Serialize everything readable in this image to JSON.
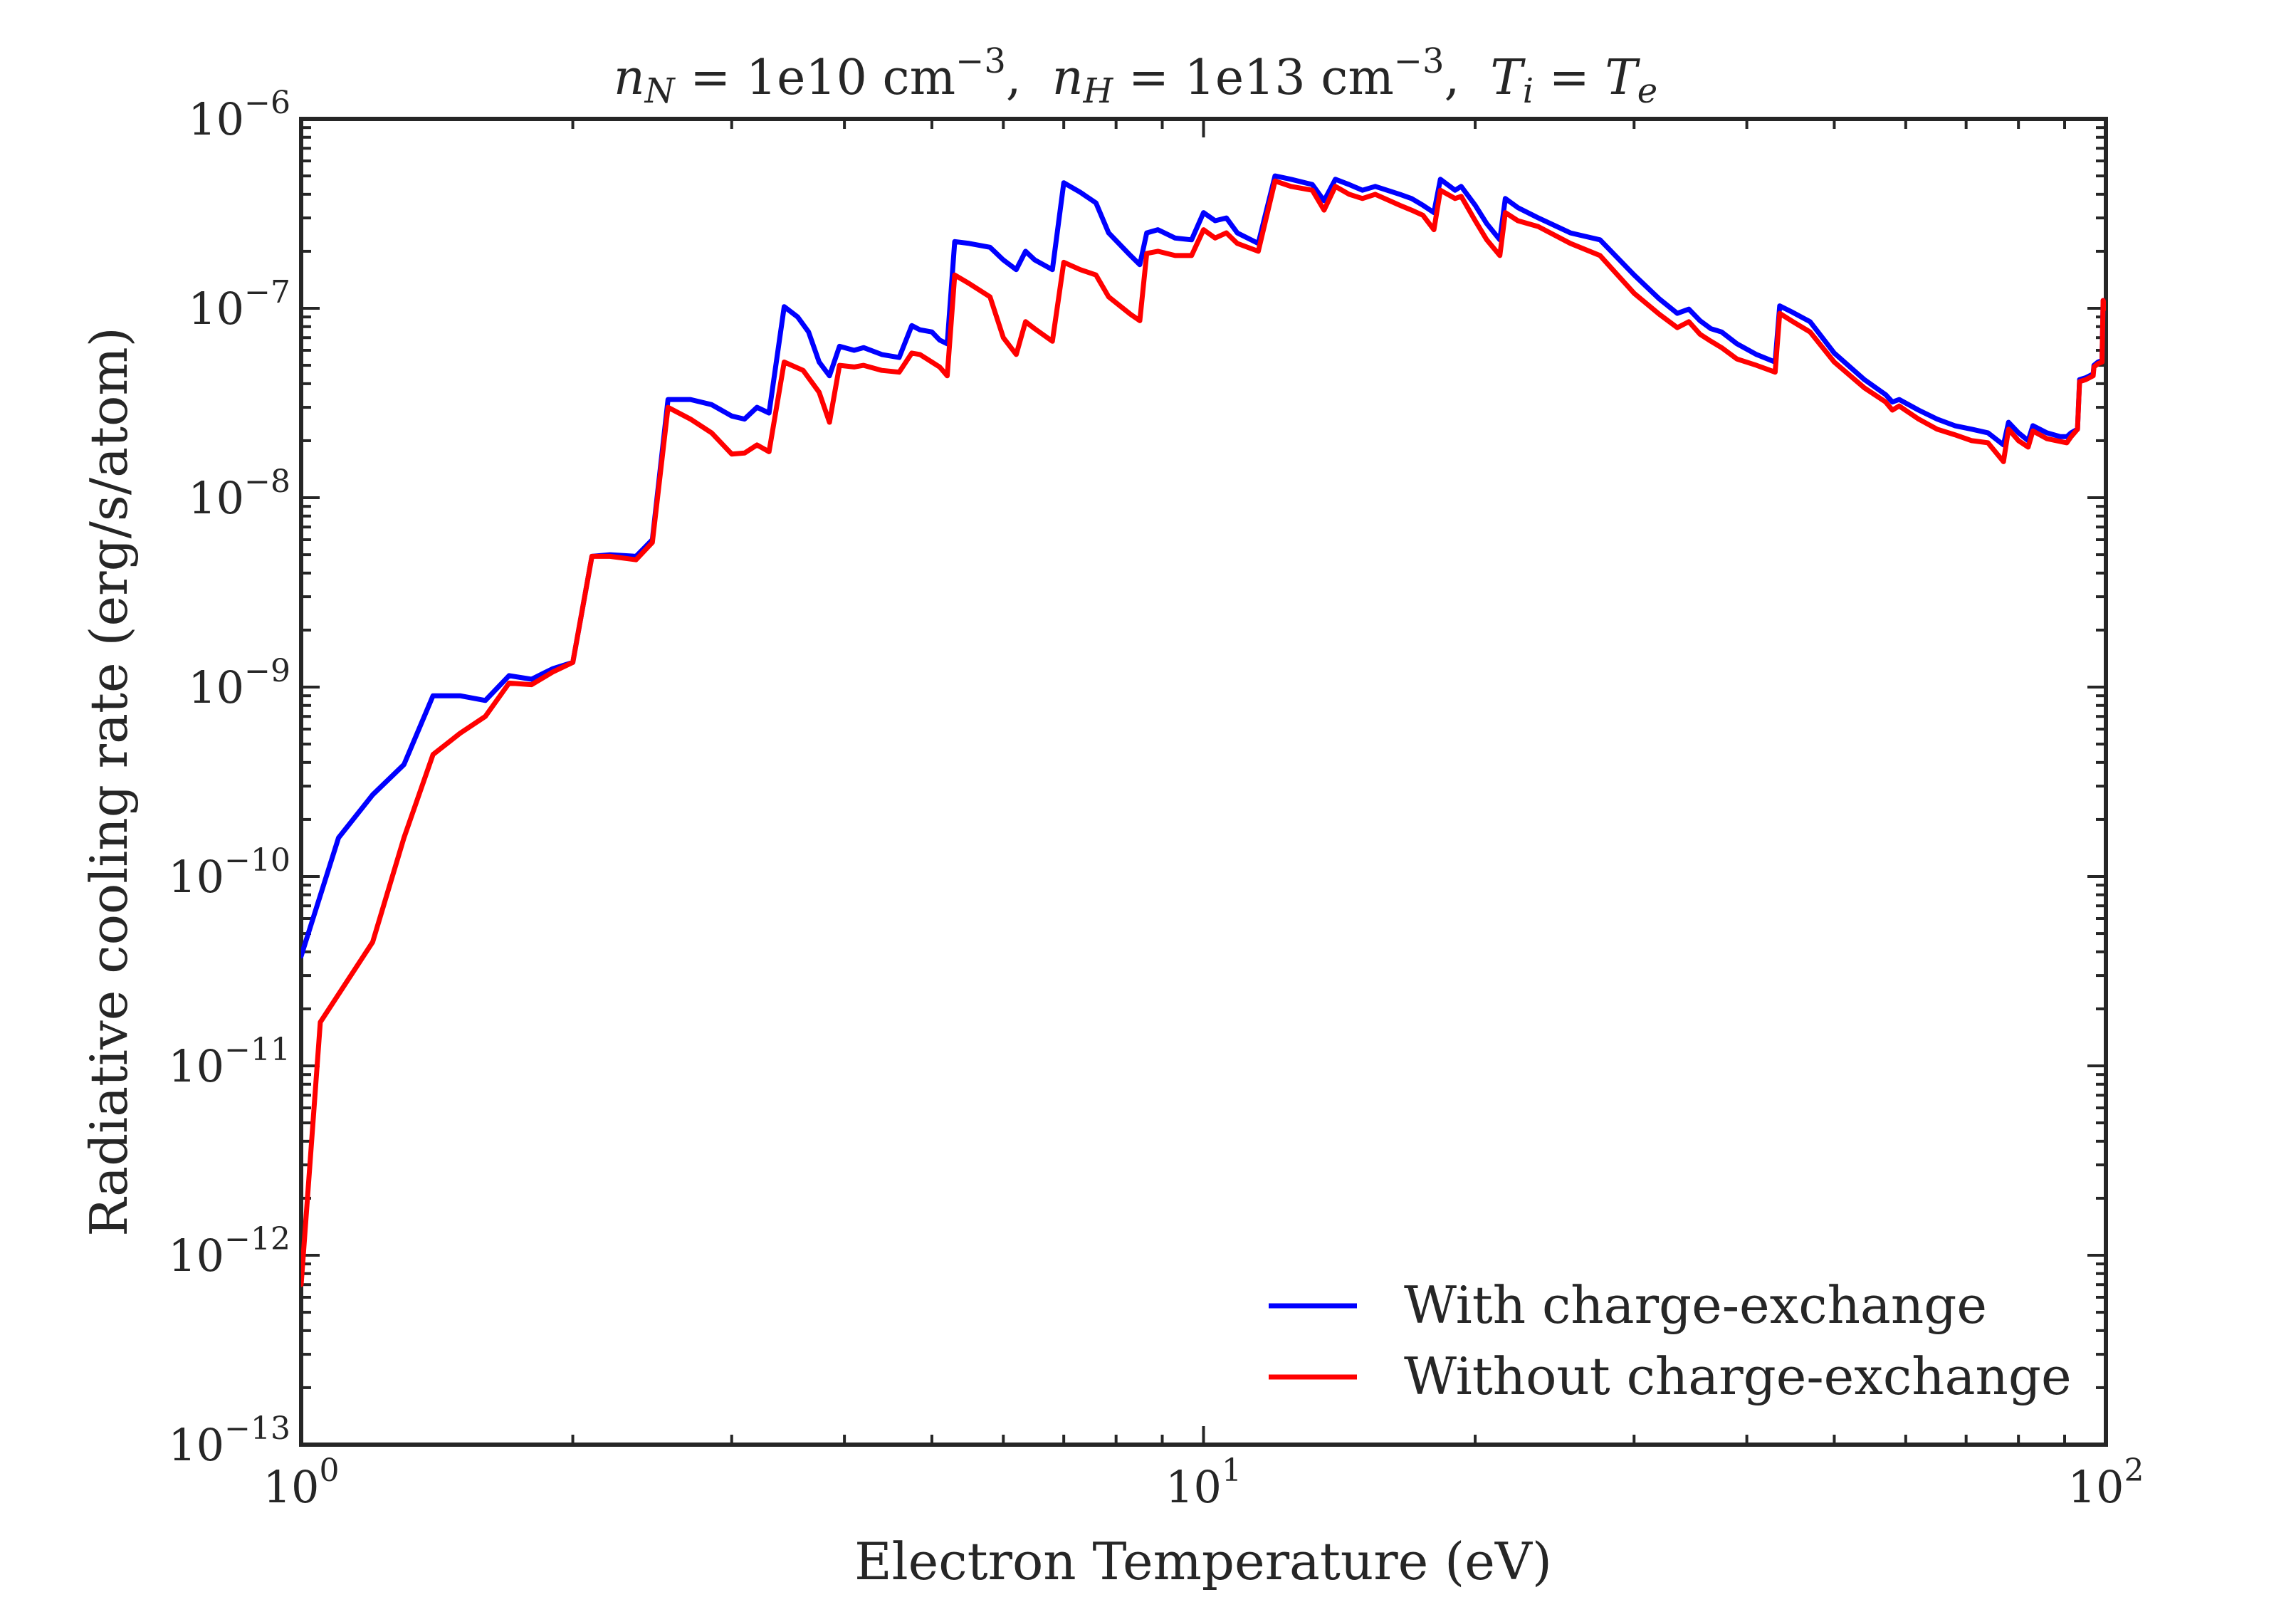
{
  "chart_data": {
    "type": "line",
    "title": "n_N = 1e10 cm^-3, n_H = 1e13 cm^-3, T_i = T_e",
    "title_parts": {
      "nN": "n",
      "nN_sub": "N",
      "nN_eq": " = 1e10 cm",
      "nN_exp": "−3",
      "nH": "n",
      "nH_sub": "H",
      "nH_eq": " = 1e13 cm",
      "nH_exp": "−3",
      "Ti": "T",
      "Ti_sub": "i",
      "eq": " = ",
      "Te": "T",
      "Te_sub": "e"
    },
    "xlabel": "Electron Temperature (eV)",
    "ylabel": "Radiative cooling rate (erg/s/atom)",
    "xscale": "log",
    "yscale": "log",
    "xlim": [
      1,
      100
    ],
    "ylim": [
      1e-13,
      1e-06
    ],
    "xticks": [
      {
        "base": "10",
        "exp": "0",
        "value": 1
      },
      {
        "base": "10",
        "exp": "1",
        "value": 10
      },
      {
        "base": "10",
        "exp": "2",
        "value": 100
      }
    ],
    "yticks": [
      {
        "base": "10",
        "exp": "−13",
        "value": 1e-13
      },
      {
        "base": "10",
        "exp": "−12",
        "value": 1e-12
      },
      {
        "base": "10",
        "exp": "−11",
        "value": 1e-11
      },
      {
        "base": "10",
        "exp": "−10",
        "value": 1e-10
      },
      {
        "base": "10",
        "exp": "−9",
        "value": 1e-09
      },
      {
        "base": "10",
        "exp": "−8",
        "value": 1e-08
      },
      {
        "base": "10",
        "exp": "−7",
        "value": 1e-07
      },
      {
        "base": "10",
        "exp": "−6",
        "value": 1e-06
      }
    ],
    "grid": false,
    "legend_position": "bottom-right",
    "series": [
      {
        "name": "With charge-exchange",
        "color": "#0000ff",
        "points": [
          [
            1.0,
            3.8e-11
          ],
          [
            1.1,
            1.6e-10
          ],
          [
            1.2,
            2.7e-10
          ],
          [
            1.3,
            3.9e-10
          ],
          [
            1.4,
            9e-10
          ],
          [
            1.5,
            9e-10
          ],
          [
            1.6,
            8.5e-10
          ],
          [
            1.7,
            1.15e-09
          ],
          [
            1.8,
            1.1e-09
          ],
          [
            1.9,
            1.25e-09
          ],
          [
            2.0,
            1.35e-09
          ],
          [
            2.1,
            4.9e-09
          ],
          [
            2.2,
            5e-09
          ],
          [
            2.35,
            4.9e-09
          ],
          [
            2.45,
            6e-09
          ],
          [
            2.55,
            3.3e-08
          ],
          [
            2.7,
            3.3e-08
          ],
          [
            2.85,
            3.1e-08
          ],
          [
            3.0,
            2.7e-08
          ],
          [
            3.1,
            2.6e-08
          ],
          [
            3.2,
            3e-08
          ],
          [
            3.3,
            2.8e-08
          ],
          [
            3.43,
            1.02e-07
          ],
          [
            3.55,
            9e-08
          ],
          [
            3.65,
            7.5e-08
          ],
          [
            3.75,
            5.2e-08
          ],
          [
            3.85,
            4.4e-08
          ],
          [
            3.95,
            6.3e-08
          ],
          [
            4.1,
            6e-08
          ],
          [
            4.2,
            6.2e-08
          ],
          [
            4.4,
            5.7e-08
          ],
          [
            4.6,
            5.5e-08
          ],
          [
            4.75,
            8.1e-08
          ],
          [
            4.85,
            7.7e-08
          ],
          [
            5.0,
            7.5e-08
          ],
          [
            5.1,
            6.8e-08
          ],
          [
            5.2,
            6.5e-08
          ],
          [
            5.3,
            2.25e-07
          ],
          [
            5.5,
            2.2e-07
          ],
          [
            5.8,
            2.1e-07
          ],
          [
            6.0,
            1.8e-07
          ],
          [
            6.2,
            1.6e-07
          ],
          [
            6.35,
            2e-07
          ],
          [
            6.5,
            1.8e-07
          ],
          [
            6.8,
            1.6e-07
          ],
          [
            7.0,
            4.6e-07
          ],
          [
            7.3,
            4.1e-07
          ],
          [
            7.6,
            3.6e-07
          ],
          [
            7.85,
            2.5e-07
          ],
          [
            8.3,
            1.9e-07
          ],
          [
            8.5,
            1.7e-07
          ],
          [
            8.65,
            2.5e-07
          ],
          [
            8.9,
            2.6e-07
          ],
          [
            9.3,
            2.35e-07
          ],
          [
            9.7,
            2.3e-07
          ],
          [
            10.0,
            3.2e-07
          ],
          [
            10.3,
            2.9e-07
          ],
          [
            10.6,
            3e-07
          ],
          [
            10.9,
            2.5e-07
          ],
          [
            11.5,
            2.2e-07
          ],
          [
            12.0,
            5e-07
          ],
          [
            12.5,
            4.8e-07
          ],
          [
            13.2,
            4.5e-07
          ],
          [
            13.6,
            3.7e-07
          ],
          [
            14.0,
            4.8e-07
          ],
          [
            14.5,
            4.5e-07
          ],
          [
            15.0,
            4.2e-07
          ],
          [
            15.5,
            4.4e-07
          ],
          [
            16.5,
            4e-07
          ],
          [
            17.0,
            3.8e-07
          ],
          [
            17.5,
            3.5e-07
          ],
          [
            18.0,
            3.2e-07
          ],
          [
            18.3,
            4.8e-07
          ],
          [
            19.0,
            4.2e-07
          ],
          [
            19.3,
            4.4e-07
          ],
          [
            20.0,
            3.5e-07
          ],
          [
            20.6,
            2.8e-07
          ],
          [
            21.3,
            2.3e-07
          ],
          [
            21.6,
            3.8e-07
          ],
          [
            22.3,
            3.4e-07
          ],
          [
            23.5,
            3e-07
          ],
          [
            25.5,
            2.5e-07
          ],
          [
            27.5,
            2.3e-07
          ],
          [
            30.0,
            1.5e-07
          ],
          [
            32.0,
            1.12e-07
          ],
          [
            33.5,
            9.4e-08
          ],
          [
            34.5,
            9.9e-08
          ],
          [
            35.5,
            8.6e-08
          ],
          [
            36.5,
            7.8e-08
          ],
          [
            37.5,
            7.5e-08
          ],
          [
            39.0,
            6.5e-08
          ],
          [
            41.0,
            5.7e-08
          ],
          [
            43.0,
            5.2e-08
          ],
          [
            43.5,
            1.03e-07
          ],
          [
            45.0,
            9.5e-08
          ],
          [
            47.0,
            8.5e-08
          ],
          [
            50.0,
            5.8e-08
          ],
          [
            54.0,
            4.2e-08
          ],
          [
            57.0,
            3.5e-08
          ],
          [
            58.0,
            3.2e-08
          ],
          [
            59.0,
            3.3e-08
          ],
          [
            62.0,
            2.9e-08
          ],
          [
            65.0,
            2.6e-08
          ],
          [
            68.0,
            2.4e-08
          ],
          [
            71.0,
            2.3e-08
          ],
          [
            74.0,
            2.2e-08
          ],
          [
            77.0,
            1.9e-08
          ],
          [
            78.0,
            2.5e-08
          ],
          [
            80.0,
            2.2e-08
          ],
          [
            82.0,
            2e-08
          ],
          [
            83.0,
            2.4e-08
          ],
          [
            86.0,
            2.2e-08
          ],
          [
            89.0,
            2.1e-08
          ],
          [
            90.5,
            2.1e-08
          ],
          [
            91.5,
            2.2e-08
          ],
          [
            93.0,
            2.3e-08
          ],
          [
            93.5,
            4.2e-08
          ],
          [
            95.0,
            4.3e-08
          ],
          [
            96.8,
            4.5e-08
          ],
          [
            97.0,
            5e-08
          ],
          [
            98.0,
            5.2e-08
          ],
          [
            99.0,
            5.3e-08
          ],
          [
            99.3,
            1.1e-07
          ],
          [
            100.0,
            1e-07
          ]
        ]
      },
      {
        "name": "Without charge-exchange",
        "color": "#ff0000",
        "points": [
          [
            1.0,
            7e-13
          ],
          [
            1.05,
            1.7e-11
          ],
          [
            1.2,
            4.5e-11
          ],
          [
            1.3,
            1.6e-10
          ],
          [
            1.4,
            4.4e-10
          ],
          [
            1.5,
            5.7e-10
          ],
          [
            1.6,
            7e-10
          ],
          [
            1.7,
            1.05e-09
          ],
          [
            1.8,
            1.03e-09
          ],
          [
            1.9,
            1.2e-09
          ],
          [
            2.0,
            1.35e-09
          ],
          [
            2.1,
            4.9e-09
          ],
          [
            2.2,
            4.9e-09
          ],
          [
            2.35,
            4.7e-09
          ],
          [
            2.45,
            5.8e-09
          ],
          [
            2.55,
            3e-08
          ],
          [
            2.7,
            2.6e-08
          ],
          [
            2.85,
            2.2e-08
          ],
          [
            3.0,
            1.7e-08
          ],
          [
            3.1,
            1.72e-08
          ],
          [
            3.2,
            1.9e-08
          ],
          [
            3.3,
            1.75e-08
          ],
          [
            3.43,
            5.2e-08
          ],
          [
            3.6,
            4.7e-08
          ],
          [
            3.75,
            3.6e-08
          ],
          [
            3.85,
            2.5e-08
          ],
          [
            3.95,
            5e-08
          ],
          [
            4.1,
            4.9e-08
          ],
          [
            4.2,
            5e-08
          ],
          [
            4.4,
            4.7e-08
          ],
          [
            4.6,
            4.6e-08
          ],
          [
            4.75,
            5.8e-08
          ],
          [
            4.85,
            5.7e-08
          ],
          [
            5.0,
            5.2e-08
          ],
          [
            5.1,
            4.9e-08
          ],
          [
            5.2,
            4.4e-08
          ],
          [
            5.3,
            1.5e-07
          ],
          [
            5.5,
            1.35e-07
          ],
          [
            5.8,
            1.15e-07
          ],
          [
            6.0,
            7e-08
          ],
          [
            6.2,
            5.7e-08
          ],
          [
            6.35,
            8.5e-08
          ],
          [
            6.5,
            7.8e-08
          ],
          [
            6.8,
            6.7e-08
          ],
          [
            7.0,
            1.75e-07
          ],
          [
            7.3,
            1.6e-07
          ],
          [
            7.6,
            1.5e-07
          ],
          [
            7.85,
            1.15e-07
          ],
          [
            8.3,
            9.3e-08
          ],
          [
            8.5,
            8.6e-08
          ],
          [
            8.65,
            1.95e-07
          ],
          [
            8.9,
            2e-07
          ],
          [
            9.3,
            1.9e-07
          ],
          [
            9.7,
            1.9e-07
          ],
          [
            10.0,
            2.6e-07
          ],
          [
            10.3,
            2.35e-07
          ],
          [
            10.6,
            2.5e-07
          ],
          [
            10.9,
            2.2e-07
          ],
          [
            11.5,
            2e-07
          ],
          [
            12.0,
            4.7e-07
          ],
          [
            12.5,
            4.4e-07
          ],
          [
            13.2,
            4.2e-07
          ],
          [
            13.6,
            3.3e-07
          ],
          [
            14.0,
            4.4e-07
          ],
          [
            14.5,
            4e-07
          ],
          [
            15.0,
            3.8e-07
          ],
          [
            15.5,
            4e-07
          ],
          [
            16.5,
            3.5e-07
          ],
          [
            17.0,
            3.3e-07
          ],
          [
            17.5,
            3.1e-07
          ],
          [
            18.0,
            2.6e-07
          ],
          [
            18.3,
            4.2e-07
          ],
          [
            19.0,
            3.8e-07
          ],
          [
            19.3,
            3.9e-07
          ],
          [
            20.0,
            2.9e-07
          ],
          [
            20.6,
            2.3e-07
          ],
          [
            21.3,
            1.9e-07
          ],
          [
            21.6,
            3.2e-07
          ],
          [
            22.3,
            2.9e-07
          ],
          [
            23.5,
            2.7e-07
          ],
          [
            25.5,
            2.2e-07
          ],
          [
            27.5,
            1.9e-07
          ],
          [
            30.0,
            1.2e-07
          ],
          [
            32.0,
            9.3e-08
          ],
          [
            33.5,
            7.9e-08
          ],
          [
            34.5,
            8.5e-08
          ],
          [
            35.5,
            7.3e-08
          ],
          [
            36.5,
            6.7e-08
          ],
          [
            37.5,
            6.2e-08
          ],
          [
            39.0,
            5.4e-08
          ],
          [
            41.0,
            5e-08
          ],
          [
            43.0,
            4.6e-08
          ],
          [
            43.5,
            9.4e-08
          ],
          [
            45.0,
            8.5e-08
          ],
          [
            47.0,
            7.5e-08
          ],
          [
            50.0,
            5.2e-08
          ],
          [
            54.0,
            3.8e-08
          ],
          [
            57.0,
            3.2e-08
          ],
          [
            58.0,
            2.9e-08
          ],
          [
            59.0,
            3.05e-08
          ],
          [
            62.0,
            2.6e-08
          ],
          [
            65.0,
            2.3e-08
          ],
          [
            68.0,
            2.15e-08
          ],
          [
            71.0,
            2e-08
          ],
          [
            74.0,
            1.95e-08
          ],
          [
            77.0,
            1.55e-08
          ],
          [
            78.0,
            2.3e-08
          ],
          [
            80.0,
            2e-08
          ],
          [
            82.0,
            1.85e-08
          ],
          [
            83.0,
            2.25e-08
          ],
          [
            86.0,
            2.05e-08
          ],
          [
            89.0,
            1.98e-08
          ],
          [
            90.5,
            1.95e-08
          ],
          [
            91.5,
            2.1e-08
          ],
          [
            93.0,
            2.3e-08
          ],
          [
            93.5,
            4.1e-08
          ],
          [
            95.0,
            4.2e-08
          ],
          [
            96.8,
            4.4e-08
          ],
          [
            97.0,
            4.9e-08
          ],
          [
            98.0,
            5.1e-08
          ],
          [
            99.0,
            5.2e-08
          ],
          [
            99.3,
            1.1e-07
          ],
          [
            100.0,
            1e-07
          ]
        ]
      }
    ]
  }
}
